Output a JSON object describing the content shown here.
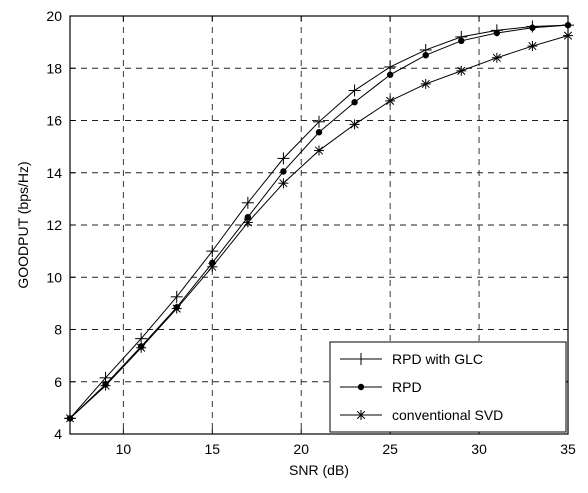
{
  "chart_data": {
    "type": "line",
    "title": "",
    "xlabel": "SNR (dB)",
    "ylabel": "GOODPUT (bps/Hz)",
    "xlim": [
      7,
      35
    ],
    "ylim": [
      4,
      20
    ],
    "xticks": [
      10,
      15,
      20,
      25,
      30,
      35
    ],
    "yticks": [
      4,
      6,
      8,
      10,
      12,
      14,
      16,
      18,
      20
    ],
    "grid": true,
    "legend_position": "bottom-right",
    "series": [
      {
        "name": "RPD with GLC",
        "marker": "plus",
        "x": [
          7,
          9,
          11,
          13,
          15,
          17,
          19,
          21,
          23,
          25,
          27,
          29,
          31,
          33,
          35
        ],
        "y": [
          4.6,
          6.15,
          7.65,
          9.25,
          11.0,
          12.85,
          14.55,
          15.95,
          17.15,
          18.05,
          18.7,
          19.2,
          19.45,
          19.6,
          19.65
        ]
      },
      {
        "name": "RPD",
        "marker": "dot",
        "x": [
          7,
          9,
          11,
          13,
          15,
          17,
          19,
          21,
          23,
          25,
          27,
          29,
          31,
          33,
          35
        ],
        "y": [
          4.6,
          5.9,
          7.35,
          8.85,
          10.55,
          12.3,
          14.05,
          15.55,
          16.7,
          17.75,
          18.5,
          19.05,
          19.35,
          19.55,
          19.65
        ]
      },
      {
        "name": "conventional SVD",
        "marker": "star",
        "x": [
          7,
          9,
          11,
          13,
          15,
          17,
          19,
          21,
          23,
          25,
          27,
          29,
          31,
          33,
          35
        ],
        "y": [
          4.6,
          5.85,
          7.3,
          8.8,
          10.4,
          12.1,
          13.6,
          14.85,
          15.85,
          16.75,
          17.4,
          17.9,
          18.4,
          18.85,
          19.25
        ]
      }
    ]
  }
}
